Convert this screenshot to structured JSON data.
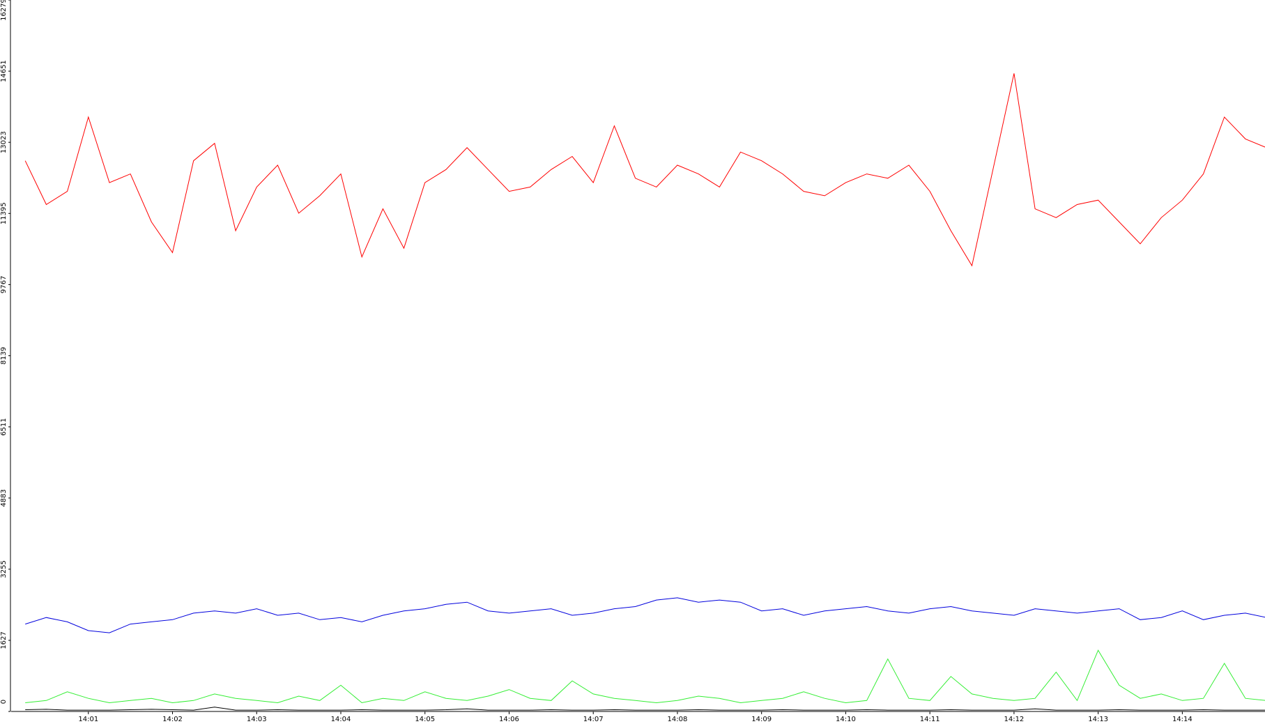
{
  "chart_data": {
    "type": "line",
    "categories": [
      null,
      null,
      null,
      "14:01",
      null,
      null,
      null,
      "14:02",
      null,
      null,
      null,
      "14:03",
      null,
      null,
      null,
      "14:04",
      null,
      null,
      null,
      "14:05",
      null,
      null,
      null,
      "14:06",
      null,
      null,
      null,
      "14:07",
      null,
      null,
      null,
      "14:08",
      null,
      null,
      null,
      "14:09",
      null,
      null,
      null,
      "14:10",
      null,
      null,
      null,
      "14:11",
      null,
      null,
      null,
      "14:12",
      null,
      null,
      null,
      "14:13",
      null,
      null,
      null,
      "14:14",
      null,
      null,
      null,
      null
    ],
    "series": [
      {
        "color": "#ff0000",
        "values": [
          12600,
          11600,
          11900,
          13600,
          12100,
          12300,
          11200,
          10500,
          12600,
          13000,
          11000,
          12000,
          12500,
          11400,
          11800,
          12300,
          10400,
          11500,
          10600,
          12100,
          12400,
          12900,
          12400,
          11900,
          12000,
          12400,
          12700,
          12100,
          13400,
          12200,
          12000,
          12500,
          12300,
          12000,
          12800,
          12600,
          12300,
          11900,
          11800,
          12100,
          12300,
          12200,
          12500,
          11900,
          11000,
          10200,
          12400,
          14600,
          11500,
          11300,
          11600,
          11700,
          11200,
          10700,
          11300,
          11700,
          12300,
          13600,
          13100,
          12900
        ]
      },
      {
        "color": "#0000dd",
        "values": [
          2000,
          2150,
          2050,
          1850,
          1800,
          2000,
          2050,
          2100,
          2250,
          2300,
          2250,
          2350,
          2200,
          2250,
          2100,
          2150,
          2050,
          2200,
          2300,
          2350,
          2450,
          2500,
          2300,
          2250,
          2300,
          2350,
          2200,
          2250,
          2350,
          2400,
          2550,
          2600,
          2500,
          2550,
          2500,
          2300,
          2350,
          2200,
          2300,
          2350,
          2400,
          2300,
          2250,
          2350,
          2400,
          2300,
          2250,
          2200,
          2350,
          2300,
          2250,
          2300,
          2350,
          2100,
          2150,
          2300,
          2100,
          2200,
          2250,
          2150
        ]
      },
      {
        "color": "#33ee33",
        "values": [
          200,
          250,
          450,
          300,
          200,
          250,
          300,
          200,
          250,
          400,
          300,
          250,
          200,
          350,
          250,
          600,
          200,
          300,
          250,
          450,
          300,
          250,
          350,
          500,
          300,
          250,
          700,
          400,
          300,
          250,
          200,
          250,
          350,
          300,
          200,
          250,
          300,
          450,
          300,
          200,
          250,
          1200,
          300,
          250,
          800,
          400,
          300,
          250,
          300,
          900,
          250,
          1400,
          600,
          300,
          400,
          250,
          300,
          1100,
          300,
          250
        ]
      },
      {
        "color": "#000000",
        "values": [
          40,
          50,
          30,
          30,
          30,
          40,
          50,
          40,
          30,
          100,
          30,
          30,
          40,
          30,
          30,
          30,
          40,
          30,
          30,
          30,
          40,
          60,
          30,
          30,
          30,
          40,
          30,
          30,
          40,
          30,
          30,
          30,
          40,
          30,
          30,
          30,
          40,
          30,
          30,
          30,
          40,
          30,
          30,
          30,
          40,
          30,
          30,
          30,
          60,
          30,
          30,
          30,
          40,
          30,
          30,
          30,
          40,
          30,
          30,
          30
        ]
      }
    ],
    "ylim": [
      0,
      16279
    ],
    "yticks": [
      0,
      1627,
      3255,
      4883,
      6511,
      8139,
      9767,
      11395,
      13023,
      14651,
      16279
    ]
  }
}
